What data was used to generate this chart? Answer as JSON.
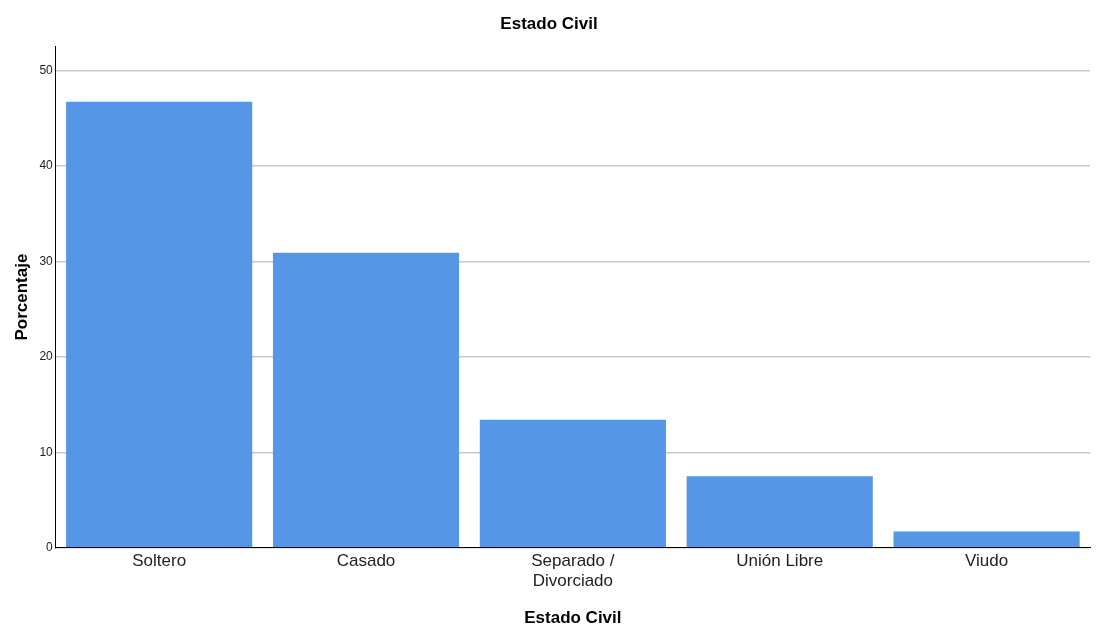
{
  "chart_data": {
    "type": "bar",
    "title": "Estado Civil",
    "xlabel": "Estado Civil",
    "ylabel": "Porcentaje",
    "categories": [
      "Soltero",
      "Casado",
      "Separado / Divorciado",
      "Unión Libre",
      "Viudo"
    ],
    "values": [
      46.7,
      30.9,
      13.4,
      7.5,
      1.7
    ],
    "color": "#5596e6",
    "ylim": [
      0,
      52.5
    ],
    "yticks": [
      0,
      10,
      20,
      30,
      40,
      50
    ],
    "grid": "y",
    "legend": false
  }
}
